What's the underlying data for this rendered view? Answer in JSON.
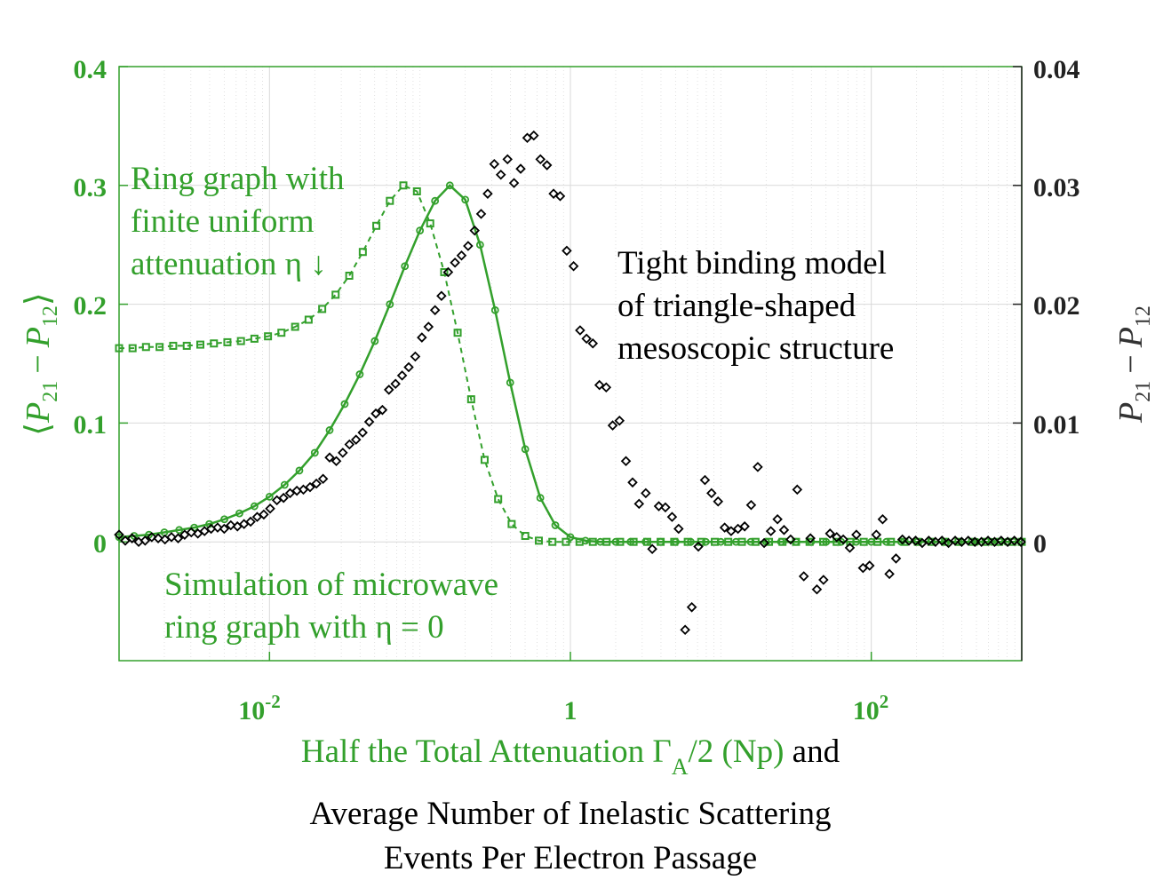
{
  "colors": {
    "green": "#33a02c",
    "black": "#000000",
    "grid": "#d9d9d9"
  },
  "chart_data": {
    "type": "scatter",
    "x_scale": "log",
    "xlim": [
      0.001,
      1000
    ],
    "ylim_left": [
      -0.1,
      0.4
    ],
    "ylim_right": [
      -0.01,
      0.04
    ],
    "grid": true,
    "left_ticks": [
      {
        "v": 0,
        "label": "0"
      },
      {
        "v": 0.1,
        "label": "0.1"
      },
      {
        "v": 0.2,
        "label": "0.2"
      },
      {
        "v": 0.3,
        "label": "0.3"
      },
      {
        "v": 0.4,
        "label": "0.4"
      }
    ],
    "right_ticks": [
      {
        "v": 0,
        "label": "0"
      },
      {
        "v": 0.01,
        "label": "0.01"
      },
      {
        "v": 0.02,
        "label": "0.02"
      },
      {
        "v": 0.03,
        "label": "0.03"
      },
      {
        "v": 0.04,
        "label": "0.04"
      }
    ],
    "x_ticks": [
      {
        "v": 0.01,
        "base": "10",
        "exp": "-2"
      },
      {
        "v": 1,
        "base": "1",
        "exp": ""
      },
      {
        "v": 100,
        "base": "10",
        "exp": "2"
      }
    ],
    "ylabel_left": {
      "open": "⟨",
      "p21": "P",
      "s21": "21",
      "minus": "−",
      "p12": "P",
      "s12": "12",
      "close": "⟩"
    },
    "ylabel_right": {
      "p21": "P",
      "s21": "21",
      "minus": "−",
      "p12": "P",
      "s12": "12"
    },
    "xlabel": {
      "green_part": "Half the Total Attenuation Γ",
      "sub": "A",
      "green_end": "/2 (Np)",
      "black_end": " and",
      "line2": "Average Number of Inelastic Scattering",
      "line3": "Events Per Electron Passage"
    },
    "annotations": {
      "ring_1": "Ring graph with",
      "ring_2": "finite uniform",
      "ring_3": "attenuation η ↓",
      "tight_1": "Tight binding model",
      "tight_2": "of triangle-shaped",
      "tight_3": "mesoscopic structure",
      "sim_1": "Simulation of microwave",
      "sim_2": "ring graph with η = 0"
    },
    "series": [
      {
        "name": "Ring graph with finite uniform attenuation (dashed, squares)",
        "axis": "left",
        "color": "#33a02c",
        "x": [
          0.001,
          0.00123,
          0.00151,
          0.00186,
          0.00229,
          0.00282,
          0.00347,
          0.00427,
          0.00525,
          0.00646,
          0.00794,
          0.00977,
          0.012,
          0.0148,
          0.0182,
          0.0224,
          0.0275,
          0.0339,
          0.0417,
          0.0513,
          0.0631,
          0.0776,
          0.0955,
          0.117,
          0.145,
          0.178,
          0.219,
          0.269,
          0.331,
          0.407,
          0.501,
          0.617,
          0.759,
          0.933,
          1.15,
          1.41,
          1.74,
          2.14,
          2.63,
          3.24,
          3.98,
          4.9,
          6.03,
          7.41,
          9.12,
          11.2,
          13.8,
          17,
          20.9,
          25.7,
          31.6,
          38.9,
          47.9,
          58.9,
          72.4,
          89.1,
          110,
          135,
          166,
          204,
          251,
          309,
          380,
          468,
          575,
          708,
          871,
          1000
        ],
        "y": [
          0.163,
          0.163,
          0.164,
          0.164,
          0.165,
          0.165,
          0.166,
          0.167,
          0.168,
          0.169,
          0.171,
          0.173,
          0.176,
          0.181,
          0.187,
          0.196,
          0.208,
          0.224,
          0.244,
          0.266,
          0.287,
          0.3,
          0.295,
          0.268,
          0.227,
          0.176,
          0.12,
          0.069,
          0.036,
          0.015,
          0.005,
          0.001,
          0,
          0,
          0,
          0,
          0,
          0,
          0,
          0,
          0,
          0,
          0,
          0,
          0,
          0,
          0,
          0,
          0,
          0,
          0,
          0,
          0,
          0,
          0,
          0,
          0,
          0,
          0,
          0,
          0,
          0,
          0,
          0,
          0,
          0,
          0,
          0
        ]
      },
      {
        "name": "Simulation of microwave ring graph with η = 0 (solid, circles)",
        "axis": "left",
        "color": "#33a02c",
        "x": [
          0.001,
          0.00126,
          0.00158,
          0.002,
          0.00251,
          0.00316,
          0.00398,
          0.00501,
          0.00631,
          0.00794,
          0.01,
          0.0126,
          0.0158,
          0.02,
          0.0251,
          0.0316,
          0.0398,
          0.0501,
          0.0631,
          0.0794,
          0.1,
          0.126,
          0.158,
          0.2,
          0.251,
          0.316,
          0.398,
          0.501,
          0.631,
          0.794,
          1,
          1.26,
          1.58,
          2,
          2.51,
          3.16,
          3.98,
          5.01,
          6.31,
          7.94,
          10,
          12.6,
          15.8,
          20,
          25.1,
          31.6,
          39.8,
          50.1,
          63.1,
          79.4,
          100,
          126,
          158,
          200,
          251,
          316,
          398,
          501,
          631,
          794,
          1000
        ],
        "y": [
          0.004,
          0.005,
          0.006,
          0.008,
          0.01,
          0.012,
          0.015,
          0.019,
          0.024,
          0.03,
          0.038,
          0.048,
          0.06,
          0.075,
          0.094,
          0.116,
          0.141,
          0.169,
          0.2,
          0.232,
          0.262,
          0.287,
          0.3,
          0.288,
          0.25,
          0.195,
          0.134,
          0.078,
          0.037,
          0.014,
          0.004,
          0.001,
          0,
          0,
          0,
          0,
          0,
          0,
          0,
          0,
          0,
          0,
          0,
          0,
          0,
          0,
          0,
          0,
          0,
          0,
          0,
          0,
          0,
          0,
          0,
          0,
          0,
          0,
          0,
          0,
          0
        ]
      },
      {
        "name": "Tight binding model of triangle-shaped mesoscopic structure (diamonds)",
        "axis": "right",
        "color": "#000000",
        "x": [
          0.001,
          0.0011,
          0.00122,
          0.00135,
          0.00149,
          0.00165,
          0.00182,
          0.00202,
          0.00223,
          0.00247,
          0.00273,
          0.00302,
          0.00334,
          0.0037,
          0.00409,
          0.00452,
          0.005,
          0.00553,
          0.00612,
          0.00677,
          0.00749,
          0.00828,
          0.00916,
          0.0101,
          0.0112,
          0.0124,
          0.0137,
          0.0152,
          0.0168,
          0.0186,
          0.0205,
          0.0227,
          0.0251,
          0.0278,
          0.0307,
          0.034,
          0.0376,
          0.0416,
          0.046,
          0.0509,
          0.0563,
          0.0622,
          0.0688,
          0.0761,
          0.0842,
          0.0931,
          0.103,
          0.114,
          0.126,
          0.139,
          0.154,
          0.171,
          0.189,
          0.209,
          0.231,
          0.255,
          0.282,
          0.312,
          0.345,
          0.382,
          0.422,
          0.467,
          0.517,
          0.571,
          0.632,
          0.699,
          0.773,
          0.855,
          0.946,
          1.05,
          1.16,
          1.28,
          1.41,
          1.56,
          1.73,
          1.91,
          2.12,
          2.34,
          2.59,
          2.86,
          3.17,
          3.5,
          3.87,
          4.28,
          4.74,
          5.24,
          5.79,
          6.41,
          7.09,
          7.84,
          8.67,
          9.59,
          10.6,
          11.7,
          13,
          14.4,
          15.9,
          17.6,
          19.4,
          21.5,
          23.8,
          26.3,
          29.1,
          32.2,
          35.6,
          39.4,
          43.5,
          48.1,
          53.2,
          58.9,
          65.1,
          72,
          79.6,
          88.1,
          97.4,
          108,
          119,
          132,
          146,
          161,
          178,
          197,
          218,
          241,
          267,
          295,
          326,
          361,
          399,
          441,
          488,
          540,
          597,
          660,
          730,
          807,
          893,
          987
        ],
        "y": [
          0.0006,
          0.0001,
          0.0003,
          0,
          0.0001,
          0.0004,
          0.0003,
          0.0002,
          0.0004,
          0.0003,
          0.0006,
          0.0008,
          0.0007,
          0.0009,
          0.0011,
          0.0012,
          0.0011,
          0.0014,
          0.0013,
          0.0015,
          0.0017,
          0.0021,
          0.0023,
          0.0028,
          0.0035,
          0.0037,
          0.0041,
          0.0043,
          0.0044,
          0.0046,
          0.0049,
          0.0053,
          0.0071,
          0.0068,
          0.0075,
          0.0082,
          0.0086,
          0.0092,
          0.0101,
          0.0108,
          0.0111,
          0.0128,
          0.0133,
          0.014,
          0.0147,
          0.0156,
          0.0172,
          0.0181,
          0.0195,
          0.0207,
          0.0227,
          0.0235,
          0.0241,
          0.0249,
          0.0262,
          0.0276,
          0.0293,
          0.0318,
          0.0309,
          0.0322,
          0.0302,
          0.0314,
          0.034,
          0.0342,
          0.0322,
          0.0317,
          0.0293,
          0.0291,
          0.0245,
          0.0232,
          0.0178,
          0.0171,
          0.0167,
          0.0132,
          0.013,
          0.0098,
          0.0102,
          0.0068,
          0.005,
          0.0032,
          0.0041,
          -0.0006,
          0.003,
          0.0029,
          0.0021,
          0.0011,
          -0.0074,
          -0.0055,
          -0.0004,
          0.0052,
          0.0041,
          0.0034,
          0.0012,
          0.0009,
          0.0011,
          0.0013,
          0.0031,
          0.0063,
          -0.0001,
          0.0009,
          0.0019,
          0.001,
          0.0002,
          0.0044,
          -0.0029,
          0.0003,
          -0.004,
          -0.0032,
          0.0007,
          0.0004,
          0.0002,
          -0.0005,
          0.0006,
          -0.0022,
          -0.002,
          0.0006,
          0.0019,
          -0.0027,
          -0.0014,
          0.0002,
          0.0001,
          0.0001,
          -0.0001,
          0.0001,
          0,
          0.0001,
          -0.0001,
          0.0001,
          0,
          0.0001,
          0,
          0,
          0.0001,
          0,
          0.0001,
          0,
          0.0001,
          0
        ]
      }
    ]
  }
}
